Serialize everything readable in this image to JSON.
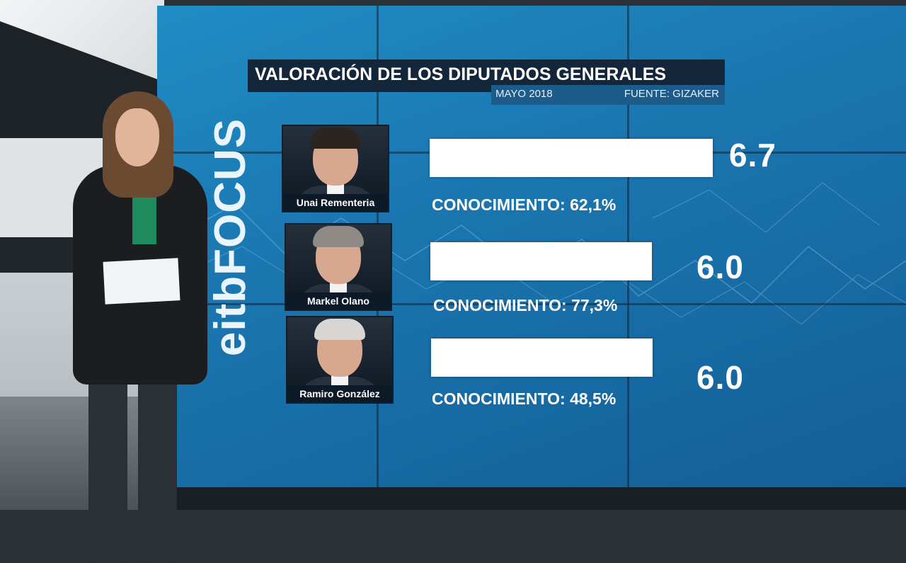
{
  "screen": {
    "logo_text": "eitbFOCUS"
  },
  "chart_data": {
    "type": "bar",
    "title": "VALORACIÓN DE LOS DIPUTADOS GENERALES",
    "subtitle_date": "MAYO 2018",
    "subtitle_source": "FUENTE: GIZAKER",
    "categories": [
      "Unai Rementeria",
      "Markel Olano",
      "Ramiro González"
    ],
    "values": [
      6.7,
      6.0,
      6.0
    ],
    "value_labels": [
      "6.7",
      "6.0",
      "6.0"
    ],
    "knowledge_labels": [
      "CONOCIMIENTO: 62,1%",
      "CONOCIMIENTO: 77,3%",
      "CONOCIMIENTO: 48,5%"
    ],
    "knowledge_values": [
      62.1,
      77.3,
      48.5
    ],
    "orientation": "horizontal",
    "bar_color": "#ffffff",
    "background_color": "#1b76b0"
  }
}
